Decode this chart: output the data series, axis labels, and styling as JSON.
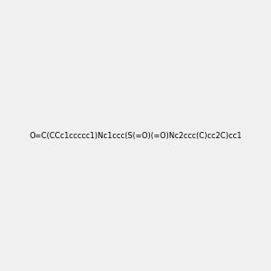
{
  "smiles": "O=C(CCc1ccccc1)Nc1ccc(S(=O)(=O)Nc2ccc(C)cc2C)cc1",
  "title": "",
  "bg_color": "#f0f0f0",
  "figsize": [
    3.0,
    3.0
  ],
  "dpi": 100
}
